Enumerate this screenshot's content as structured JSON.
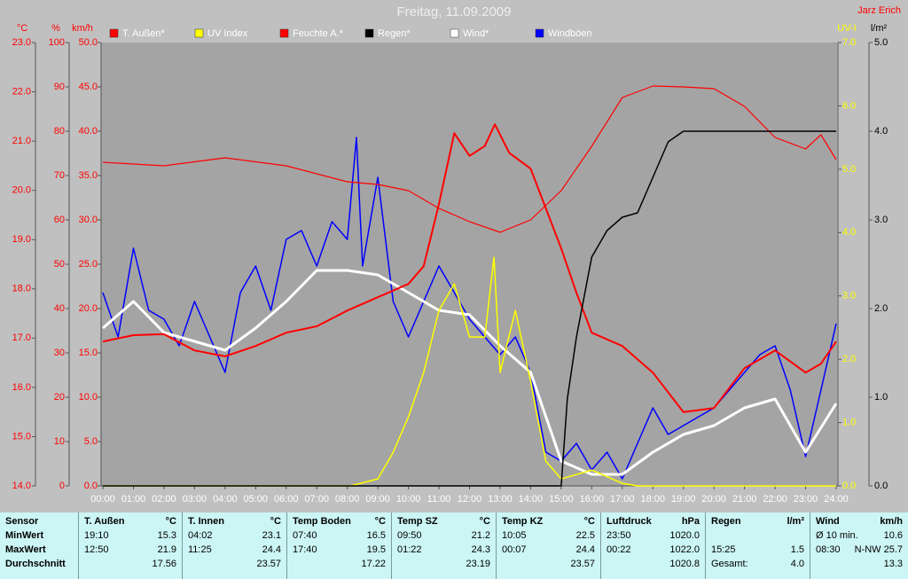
{
  "chart_data": {
    "type": "line",
    "title": "Freitag, 11.09.2009",
    "subtitle": "Jarz Erich",
    "xlim": [
      0,
      24
    ],
    "xticks": [
      {
        "value": 0,
        "label": "00:00"
      },
      {
        "value": 1,
        "label": "01:00"
      },
      {
        "value": 2,
        "label": "02:00"
      },
      {
        "value": 3,
        "label": "03:00"
      },
      {
        "value": 4,
        "label": "04:00"
      },
      {
        "value": 5,
        "label": "05:00"
      },
      {
        "value": 6,
        "label": "06:00"
      },
      {
        "value": 7,
        "label": "07:00"
      },
      {
        "value": 8,
        "label": "08:00"
      },
      {
        "value": 9,
        "label": "09:00"
      },
      {
        "value": 10,
        "label": "10:00"
      },
      {
        "value": 11,
        "label": "11:00"
      },
      {
        "value": 12,
        "label": "12:00"
      },
      {
        "value": 13,
        "label": "13:00"
      },
      {
        "value": 14,
        "label": "14:00"
      },
      {
        "value": 15,
        "label": "15:00"
      },
      {
        "value": 16,
        "label": "16:00"
      },
      {
        "value": 17,
        "label": "17:00"
      },
      {
        "value": 18,
        "label": "18:00"
      },
      {
        "value": 19,
        "label": "19:00"
      },
      {
        "value": 20,
        "label": "20:00"
      },
      {
        "value": 21,
        "label": "21:00"
      },
      {
        "value": 22,
        "label": "22:00"
      },
      {
        "value": 23,
        "label": "23:00"
      },
      {
        "value": 24,
        "label": "24:00"
      }
    ],
    "axes": [
      {
        "unit": "°C",
        "color": "#ff0000",
        "lim": [
          14,
          23
        ],
        "ticks": [
          {
            "value": 14,
            "label": "14.0"
          },
          {
            "value": 15,
            "label": "15.0"
          },
          {
            "value": 16,
            "label": "16.0"
          },
          {
            "value": 17,
            "label": "17.0"
          },
          {
            "value": 18,
            "label": "18.0"
          },
          {
            "value": 19,
            "label": "19.0"
          },
          {
            "value": 20,
            "label": "20.0"
          },
          {
            "value": 21,
            "label": "21.0"
          },
          {
            "value": 22,
            "label": "22.0"
          },
          {
            "value": 23,
            "label": "23.0"
          }
        ]
      },
      {
        "unit": "%",
        "color": "#ff0000",
        "lim": [
          0,
          100
        ],
        "ticks": [
          0,
          10,
          20,
          30,
          40,
          50,
          60,
          70,
          80,
          90,
          100
        ]
      },
      {
        "unit": "km/h",
        "color": "#ff0000",
        "lim": [
          0,
          50
        ],
        "ticks": [
          {
            "value": 0,
            "label": "0.0"
          },
          {
            "value": 5,
            "label": "5.0"
          },
          {
            "value": 10,
            "label": "10.0"
          },
          {
            "value": 15,
            "label": "15.0"
          },
          {
            "value": 20,
            "label": "20.0"
          },
          {
            "value": 25,
            "label": "25.0"
          },
          {
            "value": 30,
            "label": "30.0"
          },
          {
            "value": 35,
            "label": "35.0"
          },
          {
            "value": 40,
            "label": "40.0"
          },
          {
            "value": 45,
            "label": "45.0"
          },
          {
            "value": 50,
            "label": "50.0"
          }
        ]
      },
      {
        "unit": "UV-I",
        "color": "#ffff00",
        "lim": [
          0,
          7
        ],
        "ticks": [
          {
            "value": 0,
            "label": "0.0"
          },
          {
            "value": 1,
            "label": "1.0"
          },
          {
            "value": 2,
            "label": "2.0"
          },
          {
            "value": 3,
            "label": "3.0"
          },
          {
            "value": 4,
            "label": "4.0"
          },
          {
            "value": 5,
            "label": "5.0"
          },
          {
            "value": 6,
            "label": "6.0"
          },
          {
            "value": 7,
            "label": "7.0"
          }
        ]
      },
      {
        "unit": "l/m²",
        "color": "#000000",
        "lim": [
          0,
          5
        ],
        "ticks": [
          {
            "value": 0,
            "label": "0.0"
          },
          {
            "value": 1,
            "label": "1.0"
          },
          {
            "value": 2,
            "label": "2.0"
          },
          {
            "value": 3,
            "label": "3.0"
          },
          {
            "value": 4,
            "label": "4.0"
          },
          {
            "value": 5,
            "label": "5.0"
          }
        ]
      }
    ],
    "series": [
      {
        "name": "Windböen",
        "color": "#0000ff",
        "axis": 2,
        "x": [
          0,
          0.5,
          1,
          1.5,
          2,
          2.5,
          3,
          3.5,
          4,
          4.5,
          5,
          5.5,
          6,
          6.5,
          7,
          7.5,
          8,
          8.3,
          8.5,
          9,
          9.5,
          10,
          10.5,
          11,
          11.5,
          12,
          12.5,
          13,
          13.5,
          14,
          14.5,
          15,
          15.5,
          16,
          16.5,
          17,
          17.5,
          18,
          18.5,
          19,
          19.5,
          20,
          20.5,
          21,
          21.5,
          22,
          22.5,
          23,
          23.5,
          24
        ],
        "values": [
          21.8,
          16.8,
          26.8,
          19.8,
          18.8,
          15.8,
          20.8,
          16.8,
          12.8,
          21.8,
          24.8,
          19.8,
          27.8,
          28.8,
          24.8,
          29.8,
          27.8,
          39.3,
          24.8,
          34.8,
          20.8,
          16.8,
          20.8,
          24.8,
          21.8,
          18.8,
          16.8,
          14.8,
          16.8,
          12.8,
          3.8,
          2.8,
          4.8,
          1.8,
          3.8,
          0.8,
          4.8,
          8.8,
          5.8,
          6.8,
          7.8,
          8.8,
          10.8,
          12.8,
          14.8,
          15.8,
          10.8,
          3.3,
          10.8,
          18.3
        ]
      },
      {
        "name": "Wind*",
        "color": "#ffffff",
        "axis": 2,
        "x": [
          0,
          1,
          2,
          3,
          4,
          5,
          6,
          7,
          8,
          9,
          10,
          11,
          12,
          13,
          14,
          15,
          16,
          17,
          18,
          19,
          20,
          21,
          22,
          23,
          24
        ],
        "values": [
          17.8,
          20.8,
          17.3,
          16.3,
          15.3,
          17.8,
          20.8,
          24.3,
          24.3,
          23.8,
          21.8,
          19.8,
          19.3,
          15.8,
          12.8,
          2.8,
          1.3,
          1.3,
          3.8,
          5.8,
          6.8,
          8.8,
          9.8,
          3.8,
          9.3
        ]
      },
      {
        "name": "Feuchte A.*",
        "color": "#ff0000",
        "axis": 1,
        "x": [
          0,
          2,
          4,
          6,
          8,
          9,
          10,
          11,
          12,
          13,
          14,
          15,
          16,
          17,
          18,
          19,
          20,
          21,
          22,
          23,
          23.5,
          24
        ],
        "values": [
          73,
          72.2,
          74,
          72.2,
          68.6,
          68,
          66.6,
          62.6,
          59.6,
          57.2,
          60,
          66.6,
          76.6,
          87.6,
          90.2,
          90,
          89.6,
          85.6,
          78.6,
          76,
          79.2,
          73.6
        ]
      },
      {
        "name": "T. Außen*",
        "color": "#ff0000",
        "axis": 0,
        "x": [
          0,
          1,
          2,
          3,
          4,
          5,
          6,
          7,
          8,
          9,
          10,
          10.5,
          11,
          11.5,
          12,
          12.5,
          12.83,
          13.3,
          14,
          15,
          15.5,
          16,
          17,
          18,
          19,
          20,
          21,
          22,
          23,
          23.5,
          24
        ],
        "values": [
          16.93,
          17.06,
          17.08,
          16.75,
          16.63,
          16.84,
          17.11,
          17.24,
          17.56,
          17.83,
          18.1,
          18.46,
          19.72,
          21.16,
          20.7,
          20.9,
          21.34,
          20.76,
          20.44,
          18.82,
          17.92,
          17.11,
          16.84,
          16.3,
          15.5,
          15.58,
          16.39,
          16.75,
          16.3,
          16.48,
          16.93
        ]
      },
      {
        "name": "UV Index",
        "color": "#ffff00",
        "axis": 3,
        "x": [
          0,
          8.1,
          9,
          9.5,
          10,
          10.5,
          11,
          11.5,
          12,
          12.5,
          12.8,
          13,
          13.5,
          14,
          14.5,
          15,
          16,
          17,
          17.5,
          24
        ],
        "values": [
          0,
          0,
          0.11,
          0.53,
          1.09,
          1.79,
          2.77,
          3.19,
          2.35,
          2.35,
          3.61,
          1.79,
          2.77,
          1.65,
          0.39,
          0.11,
          0.25,
          0.04,
          0,
          0
        ]
      },
      {
        "name": "Regen*",
        "color": "#000000",
        "axis": 4,
        "x": [
          0,
          15,
          15.2,
          15.5,
          16,
          16.5,
          17,
          17.5,
          18,
          18.5,
          19,
          20,
          24
        ],
        "values": [
          0,
          0,
          0.98,
          1.68,
          2.58,
          2.88,
          3.03,
          3.08,
          3.48,
          3.88,
          4.0,
          4.0,
          4.0
        ]
      }
    ]
  },
  "table": {
    "row_labels": [
      "Sensor",
      "MinWert",
      "MaxWert",
      "Durchschnitt"
    ],
    "blocks": [
      {
        "header": "T. Außen",
        "unit": "°C",
        "min": [
          "19:10",
          "15.3"
        ],
        "max": [
          "12:50",
          "21.9"
        ],
        "avg": [
          "17.56"
        ]
      },
      {
        "header": "T. Innen",
        "unit": "°C",
        "min": [
          "04:02",
          "23.1"
        ],
        "max": [
          "11:25",
          "24.4"
        ],
        "avg": [
          "23.57"
        ]
      },
      {
        "header": "Temp Boden",
        "unit": "°C",
        "min": [
          "07:40",
          "16.5"
        ],
        "max": [
          "17:40",
          "19.5"
        ],
        "avg": [
          "17.22"
        ]
      },
      {
        "header": "Temp SZ",
        "unit": "°C",
        "min": [
          "09:50",
          "21.2"
        ],
        "max": [
          "01:22",
          "24.3"
        ],
        "avg": [
          "23.19"
        ]
      },
      {
        "header": "Temp KZ",
        "unit": "°C",
        "min": [
          "10:05",
          "22.5"
        ],
        "max": [
          "00:07",
          "24.4"
        ],
        "avg": [
          "23.57"
        ]
      },
      {
        "header": "Luftdruck",
        "unit": "hPa",
        "min": [
          "23:50",
          "1020.0"
        ],
        "max": [
          "00:22",
          "1022.0"
        ],
        "avg": [
          "1020.8"
        ]
      },
      {
        "header": "Regen",
        "unit": "l/m²",
        "max": [
          "15:25",
          "1.5"
        ],
        "avg": [
          "Gesamt:",
          "4.0"
        ]
      },
      {
        "header": "Wind",
        "unit": "km/h",
        "min": [
          "Ø 10 min.",
          "10.6"
        ],
        "max": [
          "08:30",
          "N-NW 25.7"
        ],
        "avg": [
          "13.3"
        ]
      }
    ]
  }
}
